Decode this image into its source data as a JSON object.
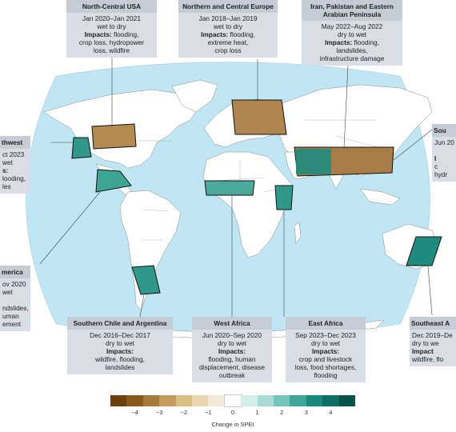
{
  "colors": {
    "ocean": "#bfe6f2",
    "land": "#ffffff",
    "border": "#8a8a8a",
    "box_bg": "#d9dee6",
    "box_title_bg": "#c6ccd6",
    "dry": "#8a5a1c",
    "wet": "#0b6f66"
  },
  "boxes": [
    {
      "id": "north-central-usa",
      "title": "North-Central USA",
      "period": "Jan 2020–Jan 2021",
      "transition": "wet to dry",
      "impacts_label": "Impacts:",
      "impacts": [
        "flooding,",
        "crop loss, hydropower",
        "loss, wildfire"
      ]
    },
    {
      "id": "northern-central-europe",
      "title": "Northern and Central Europe",
      "period": "Jan 2018–Jan 2019",
      "transition": "wet to dry",
      "impacts_label": "Impacts:",
      "impacts": [
        "flooding,",
        "extreme heat,",
        "crop loss"
      ]
    },
    {
      "id": "iran-pakistan",
      "title": "Iran, Pakistan and Eastern Arabian Peninsula",
      "title_lines": [
        "Iran, Pakistan and Eastern",
        "Arabian Peninsula"
      ],
      "period": "May 2022–Aug 2022",
      "transition": "dry to wet",
      "impacts_label": "Impacts:",
      "impacts": [
        "flooding,",
        "landslides,",
        "infrastructure damage"
      ]
    },
    {
      "id": "northwest",
      "title": "thwest",
      "period": "ct 2023",
      "transition": "wet",
      "impacts_label": "s:",
      "impacts": [
        "looding,",
        "les"
      ]
    },
    {
      "id": "south-east-asia-partial",
      "title": "Sou",
      "period": "Jun 20",
      "transition": "",
      "impacts_label": "I",
      "impacts": [
        "c",
        "hydr"
      ]
    },
    {
      "id": "central-america",
      "title": "merica",
      "period": "ov 2020",
      "transition": "wet",
      "impacts_label": "",
      "impacts": [
        "ndslides,",
        "uman",
        "ement"
      ]
    },
    {
      "id": "southern-chile-argentina",
      "title": "Southern Chile and Argentina",
      "period": "Dec 2016–Dec 2017",
      "transition": "dry to wet",
      "impacts_label": "Impacts:",
      "impacts": [
        "wildfire, flooding,",
        "landslides"
      ]
    },
    {
      "id": "west-africa",
      "title": "West Africa",
      "period": "Jun 2020–Sep 2020",
      "transition": "dry to wet",
      "impacts_label": "Impacts:",
      "impacts": [
        "flooding, human",
        "displacement, disease",
        "outbreak"
      ]
    },
    {
      "id": "east-africa",
      "title": "East Africa",
      "period": "Sep 2023–Dec 2023",
      "transition": "dry to wet",
      "impacts_label": "Impacts:",
      "impacts": [
        "crop and livestock",
        "loss, food shortages,",
        "flooding"
      ]
    },
    {
      "id": "southeast-australia",
      "title": "Southeast A",
      "period": "Dec 2019–De",
      "transition": "dry to we",
      "impacts_label": "Impact",
      "impacts": [
        "wildfire, flo"
      ]
    }
  ],
  "legend": {
    "caption": "Change in SPEI",
    "ticks": [
      "−4",
      "−3",
      "−2",
      "−1",
      "0",
      "1",
      "2",
      "3",
      "4"
    ],
    "swatches": [
      "#6b3f0e",
      "#8a5a1c",
      "#a87a3a",
      "#c49b5c",
      "#d9bd84",
      "#e8d6ae",
      "#f2ead7",
      "#ffffff",
      "#d5ede9",
      "#a9dbd3",
      "#75c4b9",
      "#3fa698",
      "#178a7d",
      "#0b6f66",
      "#07534c"
    ]
  }
}
